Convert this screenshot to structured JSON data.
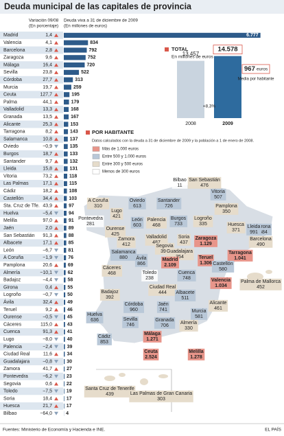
{
  "title": "Deuda municipal de las capitales de provincia",
  "footer": {
    "source": "Fuentes: Ministerio de Economía y Hacienda e INE.",
    "brand": "EL PAÍS"
  },
  "table": {
    "variation_title": "Variación 09/08",
    "variation_unit": "(En porcentaje)",
    "debt_title": "Deuda viva a 31 de diciembre de 2009",
    "debt_unit": "(En millones de euros)",
    "bar_color": "#2e5b8a",
    "up_color": "#d9574a",
    "down_color": "#8aa0b8",
    "rows": [
      {
        "city": "Madrid",
        "variation": 1.4,
        "variation_label": "1,4",
        "debt": 6777,
        "debt_label": "6.777"
      },
      {
        "city": "Valencia",
        "variation": 4.1,
        "variation_label": "4,1",
        "debt": 834
      },
      {
        "city": "Barcelona",
        "variation": 2.8,
        "variation_label": "2,8",
        "debt": 792
      },
      {
        "city": "Zaragoza",
        "variation": 9.6,
        "variation_label": "9,6",
        "debt": 752
      },
      {
        "city": "Málaga",
        "variation": 16.4,
        "variation_label": "16,4",
        "debt": 720
      },
      {
        "city": "Sevilla",
        "variation": 23.8,
        "variation_label": "23,8",
        "debt": 522
      },
      {
        "city": "Córdoba",
        "variation": 27.7,
        "variation_label": "27,7",
        "debt": 313
      },
      {
        "city": "Murcia",
        "variation": 19.7,
        "variation_label": "19,7",
        "debt": 259
      },
      {
        "city": "Ceuta",
        "variation": 127.7,
        "variation_label": "127,7",
        "debt": 195
      },
      {
        "city": "Palma",
        "variation": 44.1,
        "variation_label": "44,1",
        "debt": 179
      },
      {
        "city": "Valladolid",
        "variation": 13.3,
        "variation_label": "13,3",
        "debt": 168
      },
      {
        "city": "Granada",
        "variation": 13.5,
        "variation_label": "13,5",
        "debt": 167
      },
      {
        "city": "Alicante",
        "variation": 25.3,
        "variation_label": "25,3",
        "debt": 153
      },
      {
        "city": "Tarragona",
        "variation": 8.2,
        "variation_label": "8,2",
        "debt": 143
      },
      {
        "city": "Salamanca",
        "variation": 10.8,
        "variation_label": "10,8",
        "debt": 137
      },
      {
        "city": "Oviedo",
        "variation": -0.9,
        "variation_label": "−0,9",
        "debt": 135
      },
      {
        "city": "Burgos",
        "variation": 18.7,
        "variation_label": "18,7",
        "debt": 133
      },
      {
        "city": "Santander",
        "variation": 9.7,
        "variation_label": "9,7",
        "debt": 132
      },
      {
        "city": "Lleida",
        "variation": 15.8,
        "variation_label": "15,8",
        "debt": 131
      },
      {
        "city": "Vitoria",
        "variation": 73.2,
        "variation_label": "73,2",
        "debt": 118
      },
      {
        "city": "Las Palmas",
        "variation": 17.1,
        "variation_label": "17,1",
        "debt": 115
      },
      {
        "city": "Cádiz",
        "variation": 18.2,
        "variation_label": "18,2",
        "debt": 108
      },
      {
        "city": "Castellón",
        "variation": 34.4,
        "variation_label": "34,4",
        "debt": 103
      },
      {
        "city": "Sta. Cruz de Tfe.",
        "variation": 43.9,
        "variation_label": "43,9",
        "debt": 97
      },
      {
        "city": "Huelva",
        "variation": -5.4,
        "variation_label": "−5,4",
        "debt": 94
      },
      {
        "city": "Melilla",
        "variation": 97.0,
        "variation_label": "97,0",
        "debt": 91
      },
      {
        "city": "Jaén",
        "variation": 2.0,
        "variation_label": "2,0",
        "debt": 89
      },
      {
        "city": "San Sebastián",
        "variation": 91.3,
        "variation_label": "91,3",
        "debt": 88
      },
      {
        "city": "Albacete",
        "variation": 17.1,
        "variation_label": "17,1",
        "debt": 85
      },
      {
        "city": "León",
        "variation": -6.7,
        "variation_label": "−6,7",
        "debt": 81
      },
      {
        "city": "A Coruña",
        "variation": -1.9,
        "variation_label": "−1,9",
        "debt": 76
      },
      {
        "city": "Pamplona",
        "variation": 20.6,
        "variation_label": "20,6",
        "debt": 69
      },
      {
        "city": "Almería",
        "variation": -10.1,
        "variation_label": "−10,1",
        "debt": 62
      },
      {
        "city": "Badajoz",
        "variation": -4.4,
        "variation_label": "−4,4",
        "debt": 58
      },
      {
        "city": "Girona",
        "variation": 0.4,
        "variation_label": "0,4",
        "debt": 55
      },
      {
        "city": "Logroño",
        "variation": -0.7,
        "variation_label": "−0,7",
        "debt": 50
      },
      {
        "city": "Ávila",
        "variation": 32.4,
        "variation_label": "32,4",
        "debt": 49
      },
      {
        "city": "Teruel",
        "variation": 9.2,
        "variation_label": "9,2",
        "debt": 46
      },
      {
        "city": "Ourense",
        "variation": -0.5,
        "variation_label": "−0,5",
        "debt": 45
      },
      {
        "city": "Cáceres",
        "variation": 115.0,
        "variation_label": "115,0",
        "debt": 43
      },
      {
        "city": "Cuenca",
        "variation": 91.3,
        "variation_label": "91,3",
        "debt": 41
      },
      {
        "city": "Lugo",
        "variation": -8.0,
        "variation_label": "−8,0",
        "debt": 40
      },
      {
        "city": "Palencia",
        "variation": -2.4,
        "variation_label": "−2,4",
        "debt": 39
      },
      {
        "city": "Ciudad Real",
        "variation": 11.6,
        "variation_label": "11,6",
        "debt": 34
      },
      {
        "city": "Guadalajara",
        "variation": -0.8,
        "variation_label": "−0,8",
        "debt": 30
      },
      {
        "city": "Zamora",
        "variation": 41.7,
        "variation_label": "41,7",
        "debt": 27
      },
      {
        "city": "Pontevedra",
        "variation": -6.2,
        "variation_label": "−6,2",
        "debt": 23
      },
      {
        "city": "Segovia",
        "variation": 0.6,
        "variation_label": "0,6",
        "debt": 22
      },
      {
        "city": "Toledo",
        "variation": -7.5,
        "variation_label": "−7,5",
        "debt": 19
      },
      {
        "city": "Soria",
        "variation": 18.4,
        "variation_label": "18,4",
        "debt": 17
      },
      {
        "city": "Huesca",
        "variation": 21.7,
        "variation_label": "21,7",
        "debt": 17
      },
      {
        "city": "Bilbao",
        "variation": -64.0,
        "variation_label": "−64,0",
        "debt": 4
      }
    ]
  },
  "total": {
    "heading": "TOTAL",
    "unit": "En millones de euros",
    "years": [
      "2008",
      "2009"
    ],
    "values": [
      13457,
      14578
    ],
    "value_labels": [
      "13.457",
      "14.578"
    ],
    "colors": [
      "#c9d4df",
      "#2e6b9e"
    ],
    "change": "+8,3%",
    "per_capita": 967,
    "per_capita_unit": "euros",
    "per_capita_label": "Media por habitante"
  },
  "map": {
    "heading": "POR HABITANTE",
    "note": "Datos calculados con la deuda a 31 de diciembre de 2009 y la población a 1 de enero de 2008.",
    "legend": [
      {
        "label": "Más de 1.000 euros",
        "color": "#e8958a"
      },
      {
        "label": "Entre 500 y 1.000 euros",
        "color": "#b9c8d8"
      },
      {
        "label": "Entre 300 y 500 euros",
        "color": "#e6dccb"
      },
      {
        "label": "Menos de 300 euros",
        "color": "#ffffff"
      }
    ],
    "cities": [
      {
        "name": "Bilbao",
        "value": 11,
        "color": "#ffffff"
      },
      {
        "name": "San Sebastián",
        "value": 476,
        "color": "#e6dccb"
      },
      {
        "name": "Vitoria",
        "value": 507,
        "color": "#b9c8d8"
      },
      {
        "name": "A Coruña",
        "value": 310,
        "color": "#e6dccb"
      },
      {
        "name": "Oviedo",
        "value": 613,
        "color": "#b9c8d8"
      },
      {
        "name": "Santander",
        "value": 726,
        "color": "#b9c8d8"
      },
      {
        "name": "Pamplona",
        "value": 350,
        "color": "#e6dccb"
      },
      {
        "name": "Lugo",
        "value": 421,
        "color": "#e6dccb"
      },
      {
        "name": "Pontevedra",
        "value": 281,
        "color": "#ffffff"
      },
      {
        "name": "León",
        "value": 603,
        "color": "#b9c8d8"
      },
      {
        "name": "Palencia",
        "value": 468,
        "color": "#e6dccb"
      },
      {
        "name": "Burgos",
        "value": 733,
        "color": "#b9c8d8"
      },
      {
        "name": "Logroño",
        "value": 335,
        "color": "#e6dccb"
      },
      {
        "name": "Huesca",
        "value": 371,
        "color": "#e6dccb"
      },
      {
        "name": "Girona",
        "value": 584,
        "color": "#b9c8d8"
      },
      {
        "name": "Ourense",
        "value": 425,
        "color": "#e6dccb"
      },
      {
        "name": "Lleida",
        "value": 991,
        "color": "#b9c8d8"
      },
      {
        "name": "Barcelona",
        "value": 490,
        "color": "#e6dccb"
      },
      {
        "name": "Zamora",
        "value": 412,
        "color": "#e6dccb"
      },
      {
        "name": "Valladolid",
        "value": 487,
        "color": "#e6dccb"
      },
      {
        "name": "Soria",
        "value": 437,
        "color": "#e6dccb"
      },
      {
        "name": "Zaragoza",
        "value": 1129,
        "value_label": "1.129",
        "color": "#e8958a"
      },
      {
        "name": "Salamanca",
        "value": 880,
        "color": "#b9c8d8"
      },
      {
        "name": "Segovia",
        "value": 394,
        "color": "#e6dccb"
      },
      {
        "name": "Guadalajara",
        "value": 354,
        "color": "#e6dccb"
      },
      {
        "name": "Ávila",
        "value": 866,
        "color": "#b9c8d8"
      },
      {
        "name": "Tarragona",
        "value": 1041,
        "value_label": "1.041",
        "color": "#e8958a"
      },
      {
        "name": "Madrid",
        "value": 2109,
        "value_label": "2.109",
        "color": "#e8958a"
      },
      {
        "name": "Teruel",
        "value": 1306,
        "value_label": "1.306",
        "color": "#e8958a"
      },
      {
        "name": "Castellón",
        "value": 580,
        "color": "#b9c8d8"
      },
      {
        "name": "Toledo",
        "value": 238,
        "color": "#ffffff"
      },
      {
        "name": "Cuenca",
        "value": 748,
        "color": "#b9c8d8"
      },
      {
        "name": "Cáceres",
        "value": 468,
        "color": "#e6dccb"
      },
      {
        "name": "Valencia",
        "value": 1034,
        "value_label": "1.034",
        "color": "#e8958a"
      },
      {
        "name": "Palma de Mallorca",
        "value": 452,
        "color": "#e6dccb"
      },
      {
        "name": "Badajoz",
        "value": 392,
        "color": "#e6dccb"
      },
      {
        "name": "Ciudad Real",
        "value": 444,
        "color": "#e6dccb"
      },
      {
        "name": "Albacete",
        "value": 511,
        "color": "#b9c8d8"
      },
      {
        "name": "Alicante",
        "value": 461,
        "color": "#e6dccb"
      },
      {
        "name": "Córdoba",
        "value": 960,
        "color": "#b9c8d8"
      },
      {
        "name": "Jaén",
        "value": 741,
        "color": "#b9c8d8"
      },
      {
        "name": "Murcia",
        "value": 581,
        "color": "#b9c8d8"
      },
      {
        "name": "Sevilla",
        "value": 746,
        "color": "#b9c8d8"
      },
      {
        "name": "Granada",
        "value": 706,
        "color": "#b9c8d8"
      },
      {
        "name": "Huelva",
        "value": 636,
        "color": "#b9c8d8"
      },
      {
        "name": "Almería",
        "value": 330,
        "color": "#e6dccb"
      },
      {
        "name": "Cádiz",
        "value": 853,
        "color": "#b9c8d8"
      },
      {
        "name": "Málaga",
        "value": 1271,
        "value_label": "1.271",
        "color": "#e8958a"
      },
      {
        "name": "Ceuta",
        "value": 2524,
        "value_label": "2.524",
        "color": "#e8958a"
      },
      {
        "name": "Melilla",
        "value": 1278,
        "value_label": "1.278",
        "color": "#e8958a"
      },
      {
        "name": "Santa Cruz de Tenerife",
        "value": 439,
        "color": "#e6dccb"
      },
      {
        "name": "Las Palmas de Gran Canaria",
        "value": 303,
        "color": "#e6dccb"
      }
    ]
  }
}
